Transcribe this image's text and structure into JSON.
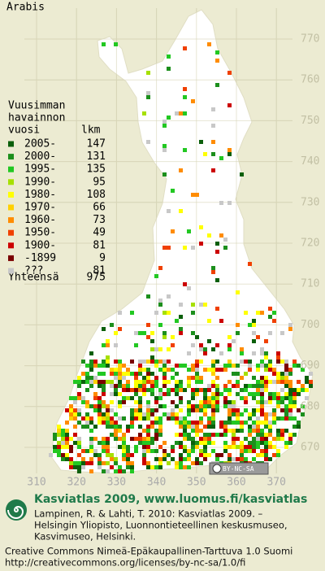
{
  "title": "Arabis",
  "legend": {
    "heading": [
      "Vuusimman",
      "havainnon"
    ],
    "col_period": "vuosi",
    "col_count": "lkm",
    "rows": [
      {
        "period": "2005-",
        "count": "147",
        "color": "#0b5f0b"
      },
      {
        "period": "2000-",
        "count": "131",
        "color": "#1c8f1c"
      },
      {
        "period": "1995-",
        "count": "135",
        "color": "#22c822"
      },
      {
        "period": "1990-",
        "count": "95",
        "color": "#a6e000"
      },
      {
        "period": "1980-",
        "count": "108",
        "color": "#ffff00"
      },
      {
        "period": "1970-",
        "count": "66",
        "color": "#ffd000"
      },
      {
        "period": "1960-",
        "count": "73",
        "color": "#ff8c00"
      },
      {
        "period": "1950-",
        "count": "49",
        "color": "#f04000"
      },
      {
        "period": "1900-",
        "count": "81",
        "color": "#cc0000"
      },
      {
        "period": "-1899",
        "count": "9",
        "color": "#7a0000"
      },
      {
        "period": "???",
        "count": "81",
        "color": "#c8c8c8"
      }
    ],
    "total_label": "Yhteensä",
    "total": "975"
  },
  "map": {
    "northings": [
      770,
      760,
      750,
      740,
      730,
      720,
      710,
      700,
      690,
      680,
      670
    ],
    "eastings": [
      310,
      320,
      330,
      340,
      350,
      360,
      370
    ]
  },
  "badge": "BY-NC-SA",
  "footer": {
    "headline": "Kasviatlas 2009, www.luomus.fi/kasviatlas",
    "citation": [
      "Lampinen, R. & Lahti, T. 2010: Kasviatlas 2009. –",
      "Helsingin Yliopisto, Luonnontieteellinen keskusmuseo,",
      "Kasvimuseo, Helsinki."
    ],
    "license": [
      "Creative Commons Nimeä-Epäkaupallinen-Tarttuva 1.0 Suomi",
      "http://creativecommons.org/licenses/by-nc-sa/1.0/fi"
    ]
  }
}
